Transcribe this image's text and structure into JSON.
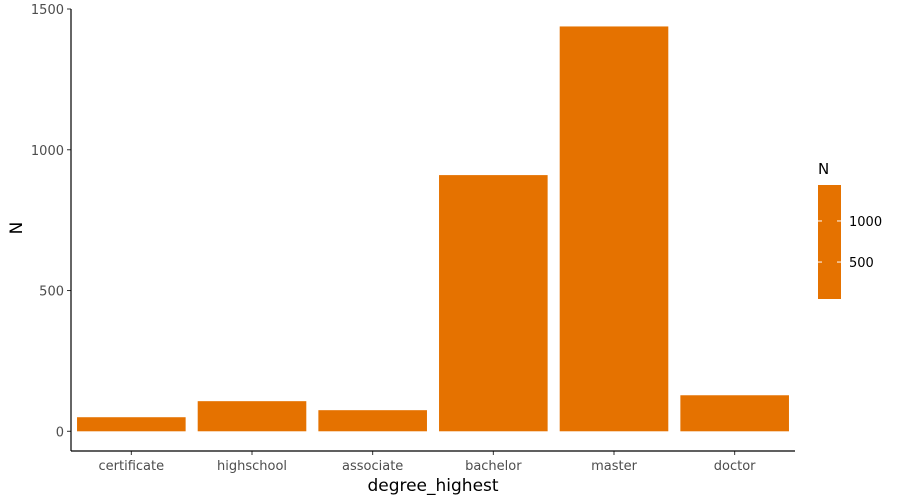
{
  "chart_data": {
    "type": "bar",
    "categories": [
      "certificate",
      "highschool",
      "associate",
      "bachelor",
      "master",
      "doctor"
    ],
    "values": [
      50,
      107,
      75,
      910,
      1438,
      128
    ],
    "xlabel": "degree_highest",
    "ylabel": "N",
    "ylim": [
      -70,
      1500
    ],
    "yticks": [
      0,
      500,
      1000,
      1500
    ],
    "grid": false,
    "bar_color": "#E57200",
    "legend": {
      "title": "N",
      "placement": "right",
      "ticks": [
        500,
        1000
      ],
      "range": [
        50,
        1438
      ]
    }
  }
}
